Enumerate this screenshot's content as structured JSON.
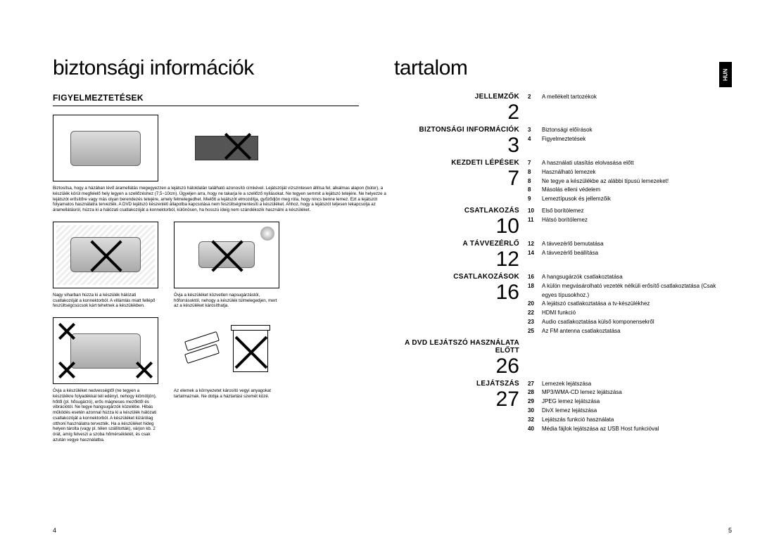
{
  "lang_tab": "HUN",
  "left": {
    "title": "biztonsági információk",
    "subhead": "FIGYELMEZTETÉSEK",
    "caption1": "Biztosítsa, hogy a házában lévő áramellátás megegyezzen a lejátszó hátoldalán található azonosító címkével. Lejátszóját vízszintesen állítsa fel, alkalmas alapon (bútor), a készülék körül megfelelő hely legyen a szellőzéshez (7,5~10cm). Ügyeljen arra, hogy ne takarja le a szellőző nyílásokat. Ne tegyen semmit a lejátszó tetejére. Ne helyezze a lejátszót erősítőre vagy más olyan berendezés tetejére, amely felmelegedhet. Mielőtt a lejátszót elmozdítja, győződjön meg róla, hogy nincs benne lemez. Ezt a lejátszót folyamatos használatra tervezték. A DVD lejátszó készenléti állapotba kapcsolása nem feszültségmentesíti a készüléket. Ahhoz, hogy a lejátszót teljesen lekapcsolja az áramellátásról, húzza ki a hálózati csatlakozóját a konnektorból, különösen, ha hosszú ideig nem szándékozik használni a készüléket.",
    "caption2a": "Nagy viharban húzza ki a készülék hálózati csatlakozóját a konnektorból. A villámlás miatt fellépő feszültségcsúcsok kárt tehetnek a készülékben.",
    "caption2b": "Óvja a készüléket közvetlen napsugárzástól, hőforrásoktól, nehogy a készülék túlmelegedjen, mert az a készüléket károsíthatja.",
    "caption3a": "Óvja a készüléket nedvességtől (ne tegyen a készülékre folyadékkal teli edényt, nehogy kiömöljön), hőtől (pl. hősugárzó), erős mágneses mezőktől és vibrációtól. Ne tegye hangsugárzók közelébe. Hibás működés esetén azonnal húzza ki a készülék hálózati csatlakozóját a konnektorból. A készüléket kizárólag otthoni használatra tervezték. Ha a készüléket hideg helyen tárolta (vagy pl. télen szállították), várjon kb. 2 órát, amíg felveszi a szoba hőmérsékletét, és csak azután vegye használatba.",
    "caption3b": "Az elemek a környezetet károsító vegyi anyagokat tartalmaznak. Ne dobja a háztartási szemét közé.",
    "page_num": "4"
  },
  "right": {
    "title": "tartalom",
    "page_num": "5",
    "sections": [
      {
        "title": "JELLEMZŐK",
        "num": "2",
        "items": [
          {
            "n": "2",
            "t": "A mellékelt tartozékok"
          }
        ]
      },
      {
        "title": "BIZTONSÁGI INFORMÁCIÓK",
        "num": "3",
        "items": [
          {
            "n": "3",
            "t": "Biztonsági előírások"
          },
          {
            "n": "4",
            "t": "Figyelmeztetések"
          }
        ]
      },
      {
        "title": "KEZDETI LÉPÉSEK",
        "num": "7",
        "items": [
          {
            "n": "7",
            "t": "A használati utasítás elolvasása előtt"
          },
          {
            "n": "8",
            "t": "Használható lemezek"
          },
          {
            "n": "8",
            "t": "Ne tegye a készülékbe az alábbi típusú lemezeket!"
          },
          {
            "n": "8",
            "t": "Másolás elleni védelem"
          },
          {
            "n": "9",
            "t": "Lemeztípusok és jellemzőik"
          }
        ]
      },
      {
        "title": "CSATLAKOZÁS",
        "num": "10",
        "items": [
          {
            "n": "10",
            "t": "Első borítólemez"
          },
          {
            "n": "11",
            "t": "Hátsó borítólemez"
          }
        ]
      },
      {
        "title": "A TÁVVEZÉRLŐ",
        "num": "12",
        "items": [
          {
            "n": "12",
            "t": "A távvezérlő bemutatása"
          },
          {
            "n": "14",
            "t": "A távvezérlő beállítása"
          }
        ]
      },
      {
        "title": "CSATLAKOZÁSOK",
        "num": "16",
        "items": [
          {
            "n": "16",
            "t": "A hangsugárzók csatlakoztatása"
          },
          {
            "n": "18",
            "t": "A külön megvásárolható vezeték nélküli erősítő csatlakoztatása (Csak egyes típusokhoz.)"
          },
          {
            "n": "20",
            "t": "A lejátszó csatlakoztatása a tv-készülékhez"
          },
          {
            "n": "22",
            "t": "HDMI funkció"
          },
          {
            "n": "23",
            "t": "Audio csatlakoztatása külső komponensekről"
          },
          {
            "n": "25",
            "t": "Az FM antenna csatlakoztatása"
          }
        ]
      },
      {
        "title": "A DVD LEJÁTSZÓ HASZNÁLATA ELŐTT",
        "num": "26",
        "items": []
      },
      {
        "title": "LEJÁTSZÁS",
        "num": "27",
        "items": [
          {
            "n": "27",
            "t": "Lemezek lejátszása"
          },
          {
            "n": "28",
            "t": "MP3/WMA-CD lemez lejátszása"
          },
          {
            "n": "29",
            "t": "JPEG lemez lejátszása"
          },
          {
            "n": "30",
            "t": "DivX lemez lejátszása"
          },
          {
            "n": "32",
            "t": "Lejátszás funkció használata"
          },
          {
            "n": "40",
            "t": "Média fájlok lejátszása az USB Host funkcióval"
          }
        ]
      }
    ]
  }
}
